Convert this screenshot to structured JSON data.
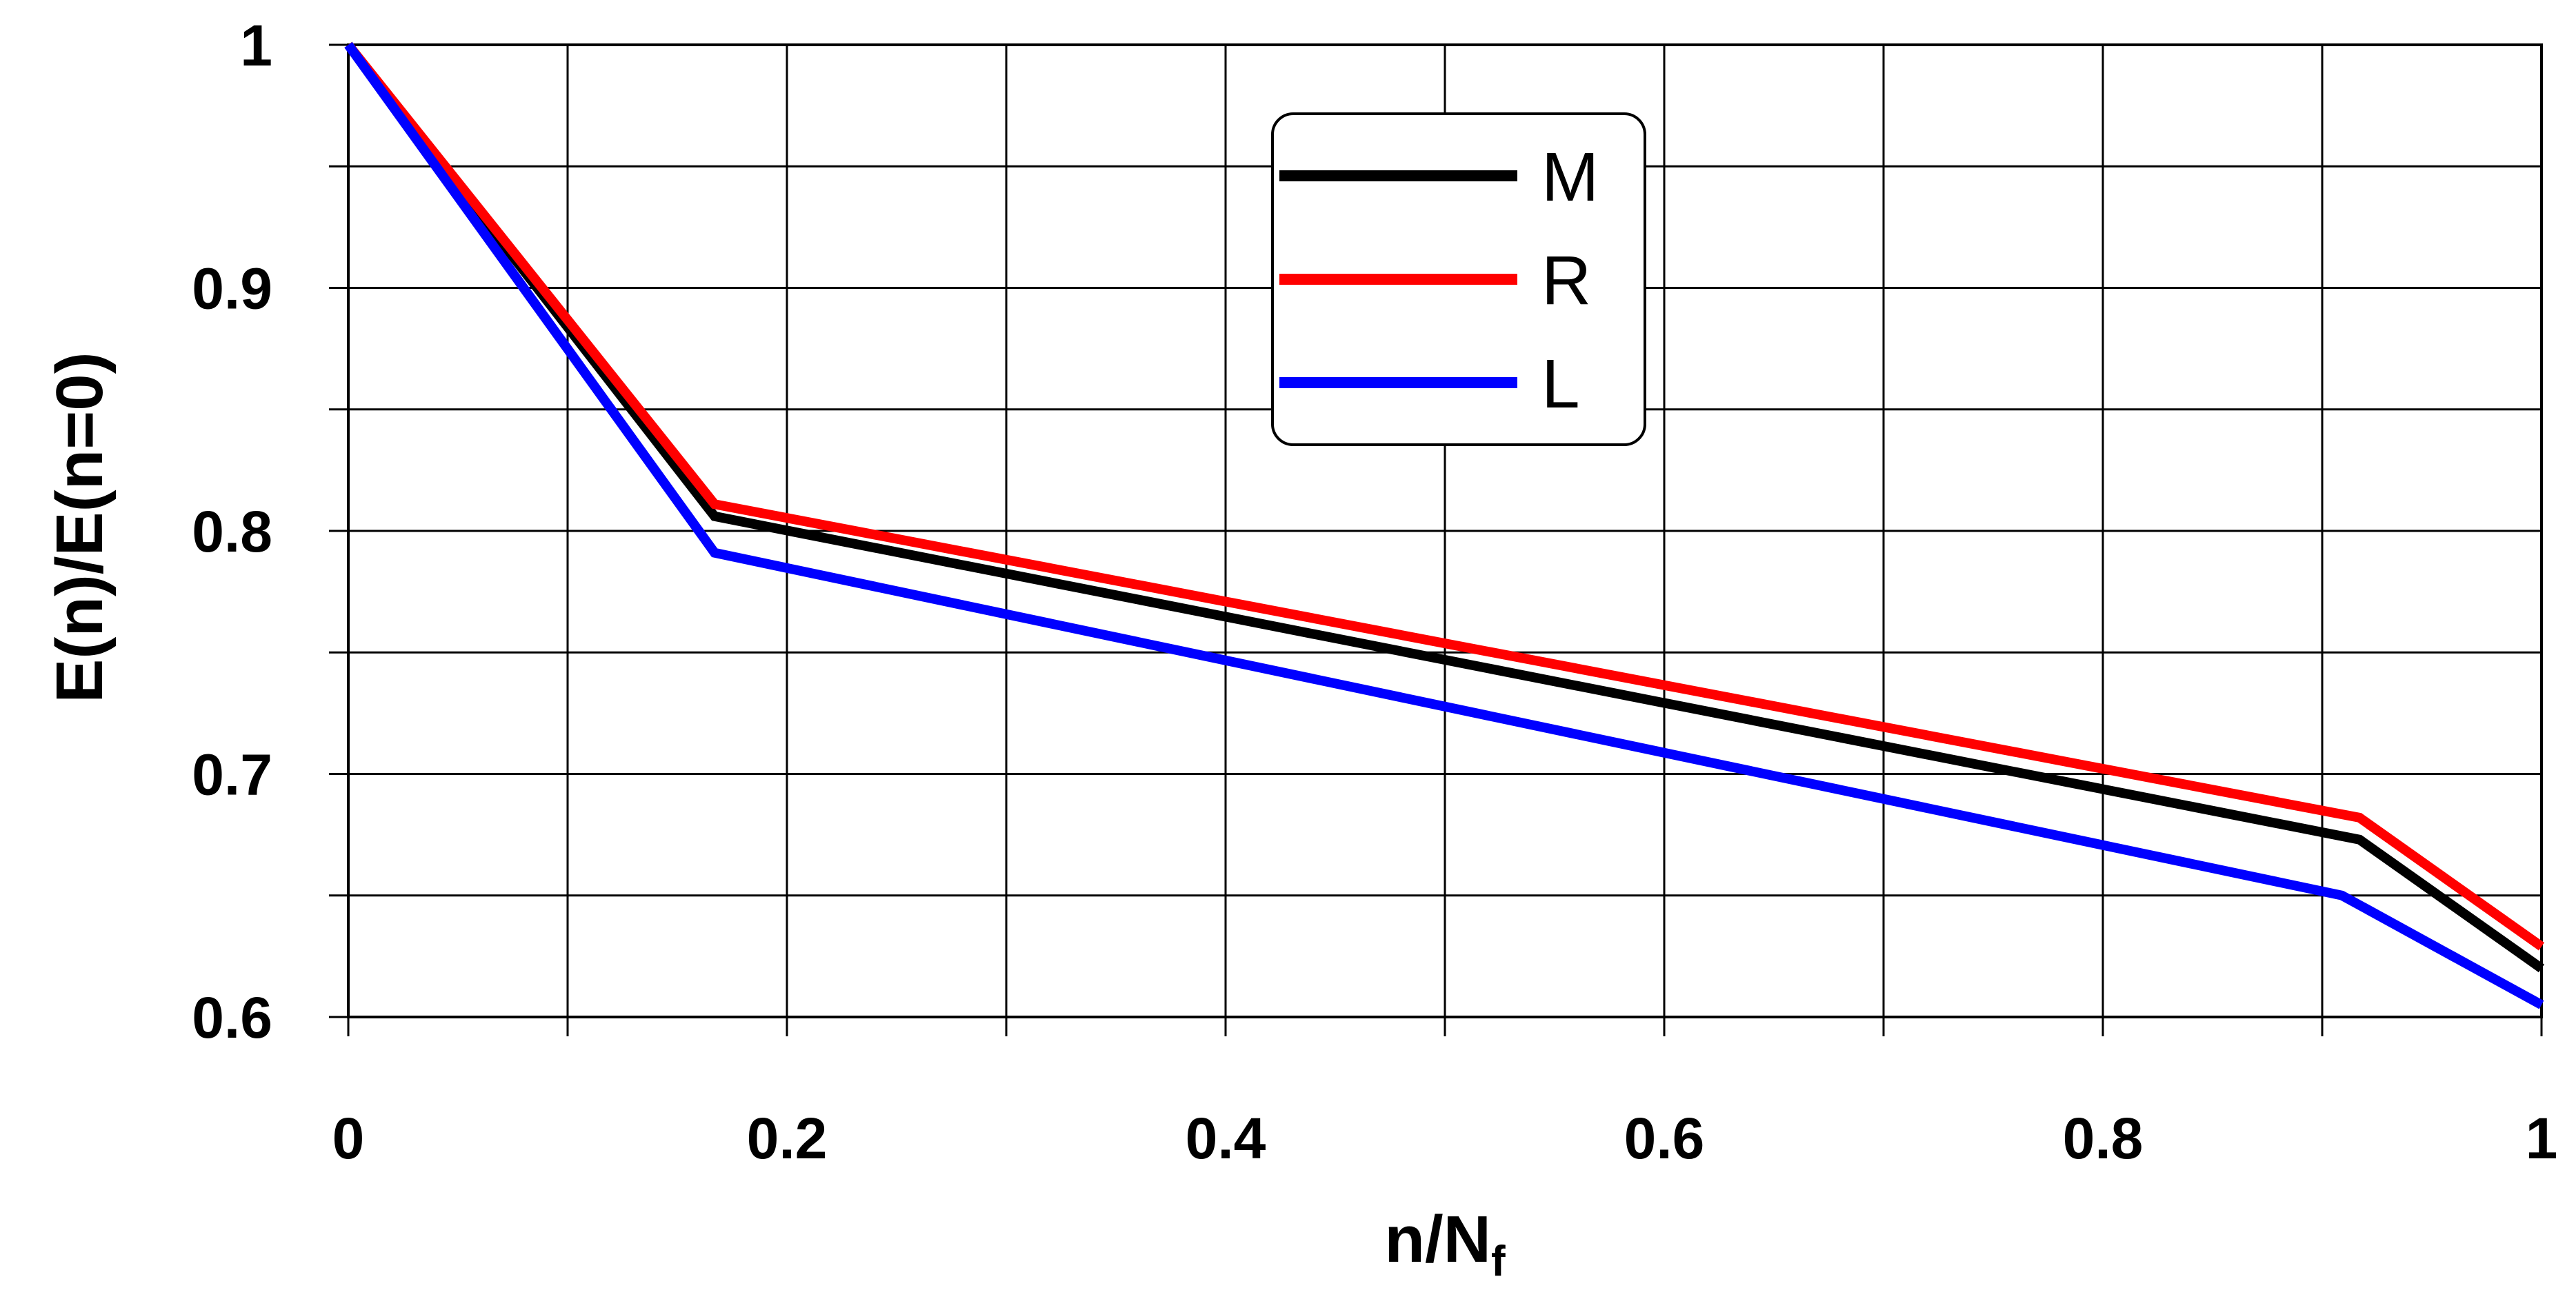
{
  "chart_data": {
    "type": "line",
    "title": "",
    "xlabel": {
      "main": "n/N",
      "subscript": "f"
    },
    "ylabel": "E(n)/E(n=0)",
    "xlim": [
      0,
      1
    ],
    "ylim": [
      0.6,
      1
    ],
    "x_ticks": [
      0,
      0.1,
      0.2,
      0.3,
      0.4,
      0.5,
      0.6,
      0.7,
      0.8,
      0.9,
      1
    ],
    "x_tick_labels": [
      "0",
      "",
      "0.2",
      "",
      "0.4",
      "",
      "0.6",
      "",
      "0.8",
      "",
      "1"
    ],
    "y_ticks": [
      0.6,
      0.65,
      0.7,
      0.75,
      0.8,
      0.85,
      0.9,
      0.95,
      1
    ],
    "y_tick_labels": [
      "0.6",
      "",
      "0.7",
      "",
      "0.8",
      "",
      "0.9",
      "",
      "1"
    ],
    "grid": true,
    "legend_position": "top-center",
    "series": [
      {
        "name": "M",
        "color": "#000000",
        "x": [
          0,
          0.167,
          0.917,
          1
        ],
        "y": [
          1.0,
          0.806,
          0.673,
          0.62
        ]
      },
      {
        "name": "R",
        "color": "#ff0000",
        "x": [
          0,
          0.167,
          0.917,
          1
        ],
        "y": [
          1.0,
          0.811,
          0.682,
          0.629
        ]
      },
      {
        "name": "L",
        "color": "#0000ff",
        "x": [
          0,
          0.167,
          0.909,
          1
        ],
        "y": [
          1.0,
          0.791,
          0.65,
          0.605
        ]
      }
    ]
  }
}
